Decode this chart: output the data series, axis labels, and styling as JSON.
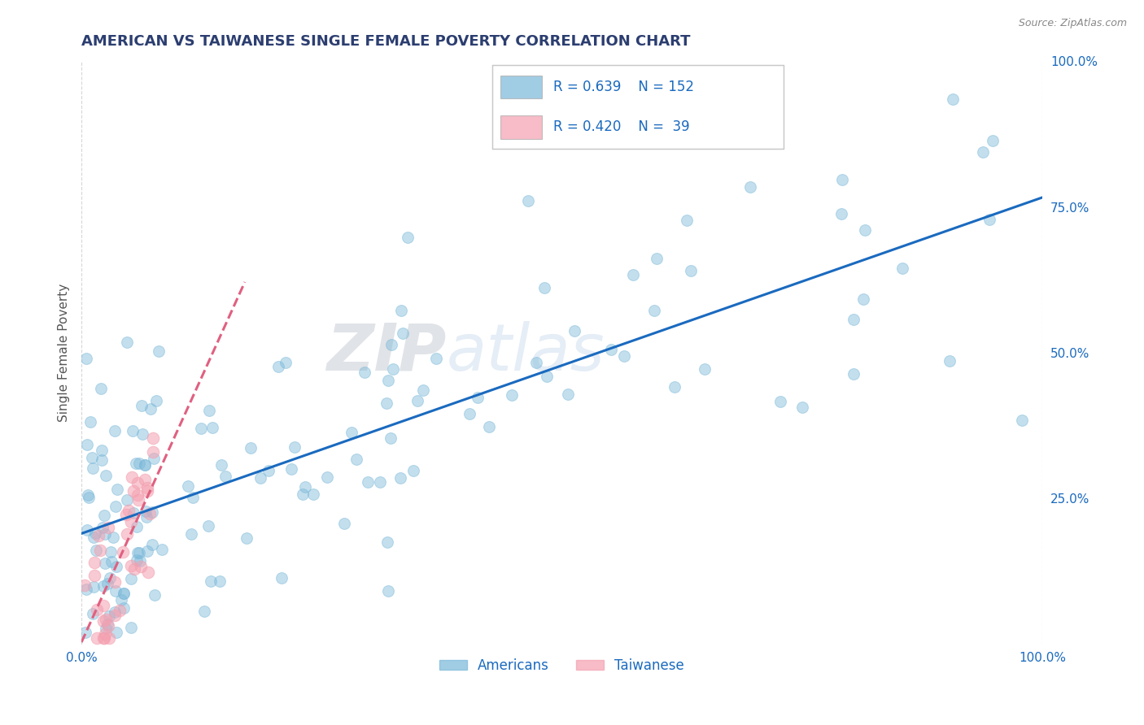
{
  "title": "AMERICAN VS TAIWANESE SINGLE FEMALE POVERTY CORRELATION CHART",
  "source_text": "Source: ZipAtlas.com",
  "ylabel": "Single Female Poverty",
  "xlabel": "",
  "background_color": "#ffffff",
  "plot_bg_color": "#ffffff",
  "grid_color": "#cccccc",
  "american_color": "#7ab8d9",
  "taiwanese_color": "#f4a0b0",
  "american_R": 0.639,
  "american_N": 152,
  "taiwanese_R": 0.42,
  "taiwanese_N": 39,
  "legend_label_american": "Americans",
  "legend_label_taiwanese": "Taiwanese",
  "xmin": 0.0,
  "xmax": 1.0,
  "ymin": 0.0,
  "ymax": 1.0,
  "right_ytick_labels": [
    "25.0%",
    "50.0%",
    "75.0%",
    "100.0%"
  ],
  "right_ytick_values": [
    0.25,
    0.5,
    0.75,
    1.0
  ],
  "xtick_labels": [
    "0.0%",
    "100.0%"
  ],
  "xtick_values": [
    0.0,
    1.0
  ],
  "title_color": "#2c3e70",
  "axis_label_color": "#555555",
  "tick_color": "#1a6abf",
  "source_color": "#888888",
  "trend_blue_color": "#1a6abf",
  "trend_pink_color": "#e06080",
  "watermark_color": "#d0dff0",
  "marker_size_am": 100,
  "marker_size_tw": 110
}
